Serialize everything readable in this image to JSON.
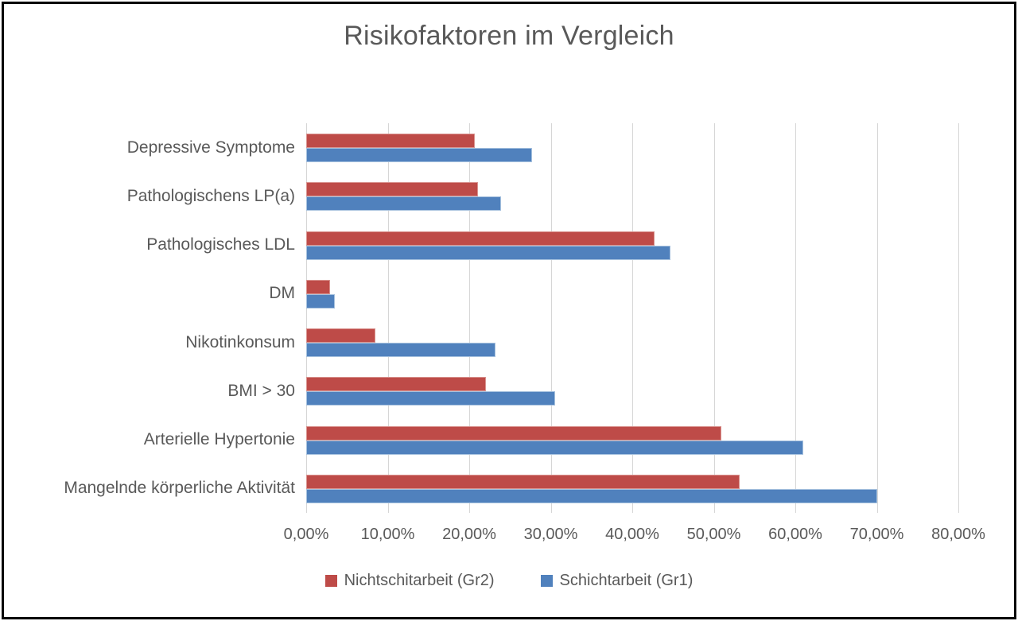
{
  "chart_data": {
    "type": "bar",
    "orientation": "horizontal",
    "title": "Risikofaktoren im Vergleich",
    "categories": [
      "Depressive Symptome",
      "Pathologischens LP(a)",
      "Pathologisches LDL",
      "DM",
      "Nikotinkonsum",
      "BMI > 30",
      "Arterielle Hypertonie",
      "Mangelnde körperliche Aktivität"
    ],
    "series": [
      {
        "name": "Nichtschitarbeit (Gr2)",
        "color": "#be4b48",
        "border_color": "#d9938f",
        "values": [
          20.7,
          21.1,
          42.7,
          2.9,
          8.5,
          22.0,
          50.9,
          53.2
        ]
      },
      {
        "name": "Schichtarbeit (Gr1)",
        "color": "#5081bd",
        "border_color": "#a6c1de",
        "values": [
          27.7,
          23.9,
          44.7,
          3.5,
          23.2,
          30.5,
          61.0,
          70.0
        ]
      }
    ],
    "x_ticks": [
      "0,00%",
      "10,00%",
      "20,00%",
      "30,00%",
      "40,00%",
      "50,00%",
      "60,00%",
      "70,00%",
      "80,00%"
    ],
    "xlim": [
      0,
      80
    ],
    "grid": true,
    "legend_position": "bottom",
    "gridline_color": "#d6d6d6",
    "text_color": "#595959",
    "background_color": "#ffffff",
    "frame_color": "#0a0a0a"
  }
}
